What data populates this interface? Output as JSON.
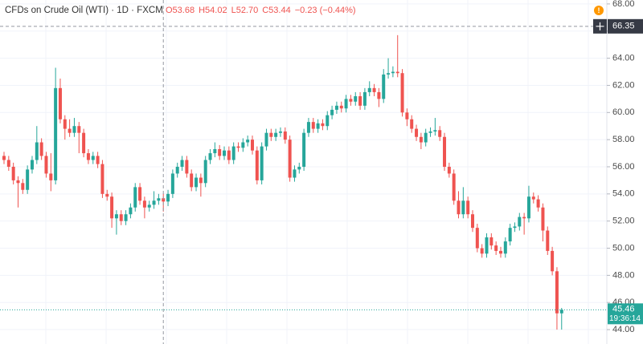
{
  "chart_data": {
    "type": "candlestick",
    "title": "CFDs on Crude Oil (WTI) · 1D · FXCM",
    "legend_items": [
      "O53.68",
      "H54.02",
      "L52.70",
      "C53.44",
      "−0.23 (−0.44%)"
    ],
    "up_color": "#26a69a",
    "down_color": "#ef5350",
    "open": [
      56.8,
      56.5,
      56.0,
      55.0,
      54.8,
      54.3,
      55.8,
      56.5,
      57.8,
      56.8,
      55.5,
      55.0,
      61.8,
      59.5,
      58.8,
      58.5,
      59.0,
      58.5,
      57.0,
      56.5,
      56.8,
      56.2,
      54.0,
      53.8,
      52.2,
      52.5,
      52.0,
      52.5,
      53.0,
      54.5,
      53.5,
      53.0,
      53.2,
      53.5,
      53.68,
      53.44,
      54.0,
      55.5,
      56.0,
      56.5,
      55.5,
      54.5,
      55.2,
      54.8,
      56.5,
      57.0,
      57.3,
      56.8,
      57.2,
      56.5,
      57.5,
      57.4,
      57.8,
      58.0,
      57.2,
      55.0,
      57.5,
      58.5,
      58.2,
      58.5,
      58.6,
      58.0,
      55.2,
      55.8,
      56.0,
      58.5,
      59.3,
      58.8,
      59.2,
      59.0,
      59.8,
      60.2,
      60.5,
      60.3,
      61.0,
      60.8,
      61.2,
      60.5,
      61.5,
      61.8,
      61.5,
      61.0,
      62.8,
      62.9,
      63.0,
      62.9,
      60.0,
      59.5,
      58.8,
      58.2,
      57.8,
      58.5,
      58.6,
      58.7,
      58.2,
      56.0,
      55.5,
      53.5,
      52.5,
      53.5,
      52.5,
      51.5,
      50.0,
      49.6,
      50.8,
      50.2,
      49.8,
      49.6,
      50.5,
      51.5,
      51.6,
      52.3,
      52.2,
      53.8,
      53.6,
      53.0,
      51.3,
      49.8,
      48.3,
      45.2
    ],
    "high": [
      57.1,
      56.8,
      56.3,
      55.3,
      55.1,
      56.1,
      56.8,
      59.0,
      58.1,
      57.1,
      57.0,
      63.3,
      62.5,
      59.8,
      59.5,
      59.6,
      59.3,
      58.8,
      57.3,
      57.1,
      57.1,
      56.5,
      54.3,
      54.1,
      52.8,
      52.8,
      52.8,
      53.3,
      54.8,
      54.8,
      53.8,
      53.5,
      54.2,
      54.0,
      54.02,
      54.3,
      55.8,
      56.3,
      56.8,
      56.8,
      55.8,
      55.5,
      55.5,
      56.8,
      57.3,
      57.8,
      57.6,
      57.5,
      57.5,
      57.8,
      57.8,
      58.1,
      58.3,
      58.3,
      57.5,
      57.8,
      58.8,
      58.8,
      58.8,
      58.9,
      58.9,
      58.3,
      56.1,
      56.3,
      58.8,
      59.6,
      59.6,
      59.5,
      59.5,
      60.1,
      60.5,
      60.8,
      60.8,
      61.3,
      61.3,
      61.5,
      61.5,
      61.8,
      62.3,
      62.1,
      61.8,
      63.2,
      64.0,
      63.4,
      65.7,
      63.2,
      60.3,
      59.8,
      59.1,
      58.5,
      58.8,
      58.9,
      59.6,
      59.0,
      58.5,
      56.3,
      55.8,
      54.2,
      54.5,
      53.8,
      52.8,
      51.8,
      50.3,
      51.1,
      51.1,
      50.5,
      50.1,
      50.8,
      51.8,
      51.9,
      52.6,
      52.6,
      54.6,
      54.1,
      53.9,
      53.3,
      51.6,
      50.1,
      48.6,
      45.6
    ],
    "low": [
      56.2,
      55.7,
      54.7,
      53.0,
      54.0,
      54.0,
      55.5,
      56.2,
      56.5,
      55.2,
      54.2,
      54.7,
      59.2,
      58.0,
      58.2,
      58.2,
      57.0,
      56.7,
      56.2,
      56.2,
      55.9,
      53.7,
      53.5,
      51.5,
      51.0,
      51.7,
      51.7,
      52.2,
      52.7,
      53.2,
      52.2,
      52.7,
      52.9,
      53.2,
      52.7,
      53.1,
      53.7,
      55.2,
      55.7,
      55.2,
      54.2,
      54.2,
      53.8,
      54.5,
      56.2,
      56.7,
      56.5,
      56.5,
      56.2,
      56.2,
      57.1,
      57.1,
      57.5,
      56.9,
      54.7,
      54.7,
      57.2,
      57.9,
      57.9,
      58.2,
      57.7,
      54.9,
      54.9,
      55.5,
      55.7,
      58.2,
      58.5,
      58.5,
      58.7,
      58.7,
      59.5,
      59.9,
      60.0,
      60.0,
      60.5,
      60.5,
      60.2,
      60.2,
      61.2,
      61.2,
      60.4,
      60.7,
      62.5,
      62.6,
      62.6,
      59.7,
      59.0,
      58.5,
      57.9,
      57.3,
      57.5,
      58.2,
      58.3,
      57.9,
      55.7,
      55.2,
      53.2,
      52.2,
      52.2,
      52.2,
      51.2,
      49.7,
      49.3,
      49.3,
      49.9,
      49.5,
      49.3,
      49.3,
      50.2,
      51.2,
      51.3,
      51.0,
      51.9,
      53.3,
      52.7,
      50.5,
      49.5,
      48.0,
      44.0,
      44.0
    ],
    "close": [
      56.5,
      56.0,
      55.0,
      54.8,
      54.3,
      55.8,
      56.5,
      57.8,
      56.8,
      55.5,
      55.0,
      61.8,
      59.5,
      58.8,
      58.5,
      59.0,
      58.5,
      57.0,
      56.5,
      56.8,
      56.2,
      54.0,
      53.8,
      52.2,
      52.5,
      52.0,
      52.5,
      53.0,
      54.5,
      53.5,
      53.0,
      53.2,
      53.5,
      53.68,
      53.44,
      54.0,
      55.5,
      56.0,
      56.5,
      55.5,
      54.5,
      55.2,
      54.8,
      56.5,
      57.0,
      57.3,
      56.8,
      57.2,
      56.5,
      57.5,
      57.4,
      57.8,
      58.0,
      57.2,
      55.0,
      57.5,
      58.5,
      58.2,
      58.5,
      58.6,
      58.0,
      55.2,
      55.8,
      56.0,
      58.5,
      59.3,
      58.8,
      59.2,
      59.0,
      59.8,
      60.2,
      60.5,
      60.3,
      61.0,
      60.8,
      61.2,
      60.5,
      61.5,
      61.8,
      61.5,
      61.0,
      62.8,
      62.9,
      63.0,
      62.9,
      60.0,
      59.5,
      58.8,
      58.2,
      57.8,
      58.5,
      58.6,
      58.7,
      58.2,
      56.0,
      55.5,
      53.5,
      52.5,
      53.5,
      52.5,
      51.5,
      50.0,
      49.6,
      50.8,
      50.2,
      49.8,
      49.6,
      50.5,
      51.5,
      51.6,
      52.3,
      52.2,
      53.8,
      53.6,
      53.0,
      51.3,
      49.8,
      48.3,
      45.2,
      45.46
    ],
    "ylim": [
      42.94,
      68.29
    ],
    "yticks": [
      {
        "value": 44,
        "label": "44.00"
      },
      {
        "value": 46,
        "label": "46.00"
      },
      {
        "value": 48,
        "label": "48.00"
      },
      {
        "value": 50,
        "label": "50.00"
      },
      {
        "value": 52,
        "label": "52.00"
      },
      {
        "value": 54,
        "label": "54.00"
      },
      {
        "value": 56,
        "label": "56.00"
      },
      {
        "value": 58,
        "label": "58.00"
      },
      {
        "value": 60,
        "label": "60.00"
      },
      {
        "value": 62,
        "label": "62.00"
      },
      {
        "value": 64,
        "label": "64.00"
      },
      {
        "value": 66,
        "label": "66.00"
      },
      {
        "value": 68,
        "label": "68.00"
      }
    ],
    "grid": true,
    "crosshair_price": {
      "value": 66.35,
      "label": "66.35"
    },
    "last_price": {
      "value": 45.46,
      "label": "45.46"
    },
    "countdown": "19:36:14"
  }
}
